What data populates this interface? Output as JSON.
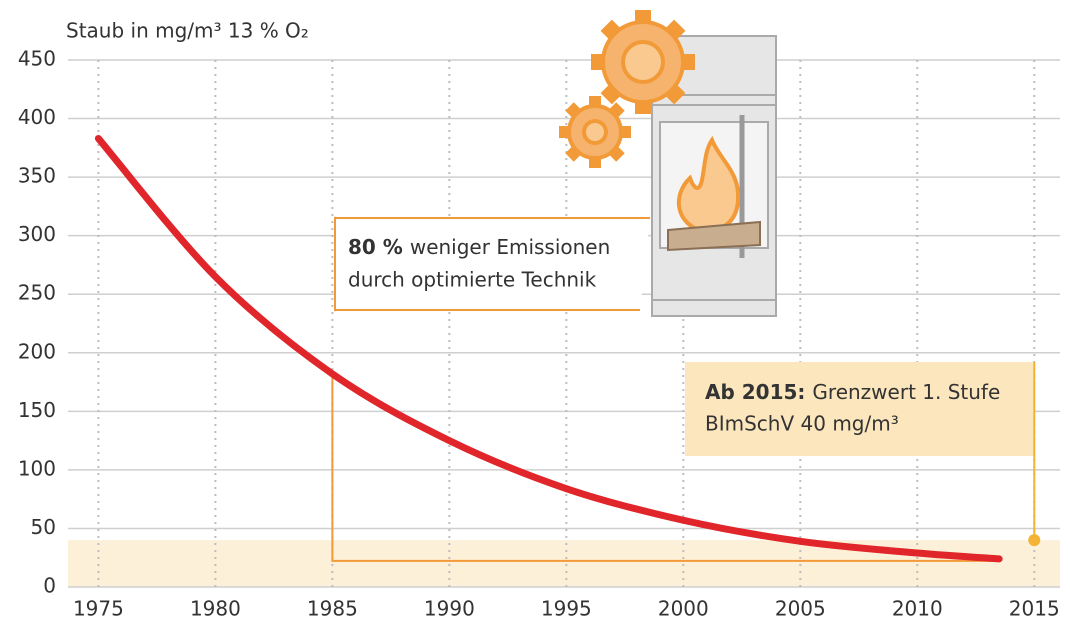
{
  "chart_data": {
    "type": "line",
    "title": "Staub in mg/m³ 13 % O₂",
    "x": [
      1975,
      1980,
      1985,
      1990,
      1995,
      2000,
      2005,
      2010,
      2013.5
    ],
    "series": [
      {
        "color": "#e0262a",
        "values": [
          383,
          265,
          182,
          125,
          84,
          57,
          39,
          29,
          24
        ]
      }
    ],
    "xlim": [
      1973.7,
      2016.1
    ],
    "xticks": [
      1975,
      1980,
      1985,
      1990,
      1995,
      2000,
      2005,
      2010,
      2015
    ],
    "ylim": [
      0,
      450
    ],
    "yticks": [
      0,
      50,
      100,
      150,
      200,
      250,
      300,
      350,
      400,
      450
    ],
    "grid": true,
    "limit": {
      "x": 2015,
      "value": 40,
      "color": "#f5b335",
      "band_color": "#fdf0d8",
      "bold": "Ab 2015:",
      "text": "Grenzwert 1. Stufe",
      "line2": "BImSchV 40 mg/m³"
    },
    "reduction": {
      "bold": "80 %",
      "text": "weniger Emissionen",
      "line2": "durch optimierte Technik",
      "color": "#f29a38"
    }
  }
}
